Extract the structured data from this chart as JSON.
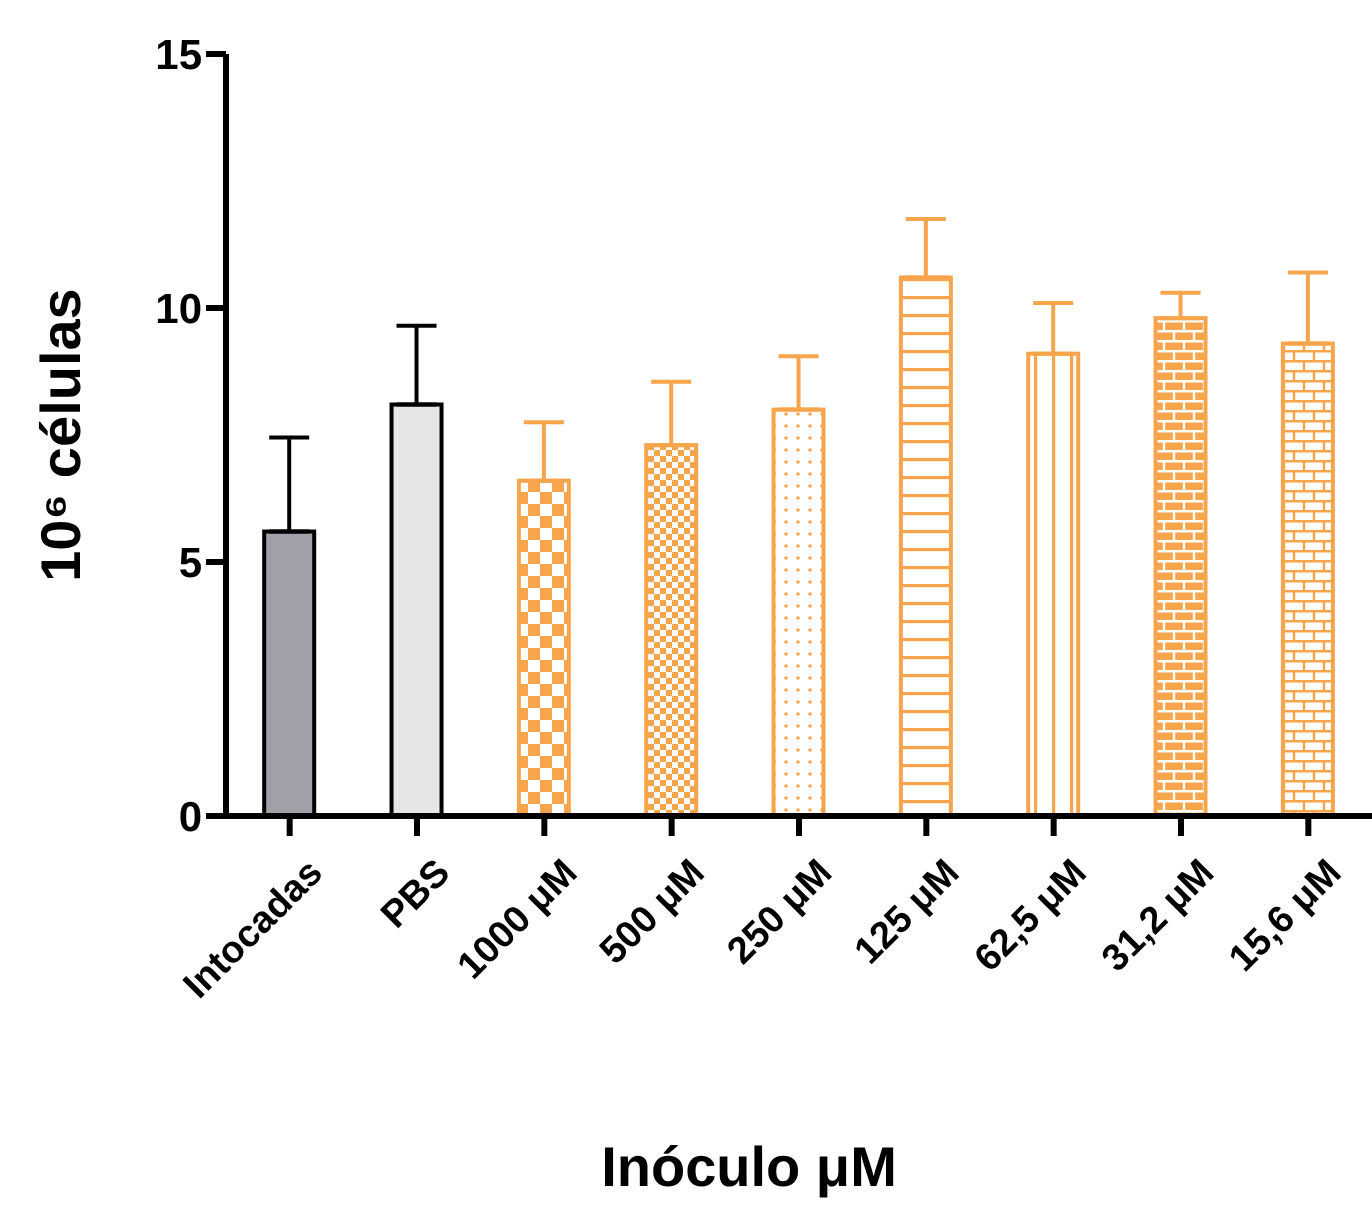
{
  "chart_data": {
    "type": "bar",
    "xlabel": "Inóculo μM",
    "ylabel": "10⁶ células",
    "categories": [
      "Intocadas",
      "PBS",
      "1000 μM",
      "500 μM",
      "250 μM",
      "125 μM",
      "62,5 μM",
      "31,2 μM",
      "15,6 μM"
    ],
    "values": [
      5.6,
      8.1,
      6.6,
      7.3,
      8.0,
      10.6,
      9.1,
      9.8,
      9.3
    ],
    "errors": [
      [
        5.6,
        7.45
      ],
      [
        8.1,
        9.65
      ],
      [
        6.6,
        7.75
      ],
      [
        7.3,
        8.55
      ],
      [
        8.0,
        9.05
      ],
      [
        10.6,
        11.75
      ],
      [
        9.1,
        10.1
      ],
      [
        9.8,
        10.3
      ],
      [
        9.3,
        10.7
      ]
    ],
    "colors": [
      "#a0a0a8",
      "#e6e6e6",
      "#f7a54c",
      "#f7a54c",
      "#f7a54c",
      "#f7a54c",
      "#f7a54c",
      "#f7a54c",
      "#f7a54c"
    ],
    "ylim": [
      0,
      15
    ],
    "yticks": [
      0,
      5,
      10,
      15
    ],
    "grid": false,
    "legend": false
  }
}
